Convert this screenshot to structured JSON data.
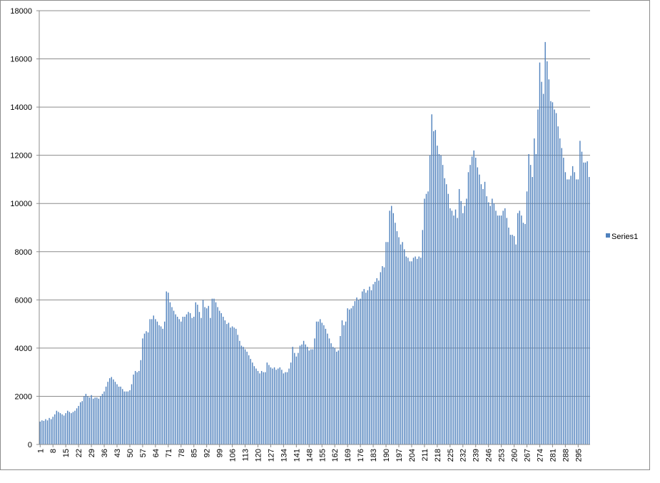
{
  "chart_data": {
    "type": "bar",
    "title": "",
    "xlabel": "",
    "ylabel": "",
    "ylim": [
      0,
      18000
    ],
    "yticks": [
      0,
      2000,
      4000,
      6000,
      8000,
      10000,
      12000,
      14000,
      16000,
      18000
    ],
    "x_tick_labels": [
      "1",
      "8",
      "15",
      "22",
      "29",
      "36",
      "43",
      "50",
      "57",
      "64",
      "71",
      "78",
      "85",
      "92",
      "99",
      "106",
      "113",
      "120",
      "127",
      "134",
      "141",
      "148",
      "155",
      "162",
      "169",
      "176",
      "183",
      "190",
      "197",
      "204",
      "211",
      "218",
      "225",
      "232",
      "239",
      "246",
      "253",
      "260",
      "267",
      "274",
      "281",
      "288",
      "295"
    ],
    "grid": true,
    "legend_position": "right",
    "bar_color": "#4f81bd",
    "series": [
      {
        "name": "Series1",
        "values": [
          950,
          1000,
          980,
          1050,
          1000,
          1100,
          1050,
          1150,
          1250,
          1400,
          1350,
          1300,
          1250,
          1200,
          1300,
          1400,
          1350,
          1300,
          1350,
          1400,
          1500,
          1600,
          1750,
          1800,
          2000,
          2100,
          2000,
          1950,
          2050,
          1900,
          1950,
          1950,
          1900,
          2000,
          2100,
          2200,
          2400,
          2600,
          2750,
          2800,
          2700,
          2600,
          2500,
          2400,
          2400,
          2300,
          2200,
          2200,
          2200,
          2250,
          2500,
          2900,
          3050,
          3000,
          3050,
          3500,
          4400,
          4600,
          4700,
          4650,
          5200,
          5200,
          5350,
          5200,
          5100,
          4950,
          4900,
          4800,
          5100,
          6350,
          6300,
          5900,
          5700,
          5550,
          5400,
          5300,
          5200,
          5100,
          5300,
          5300,
          5400,
          5500,
          5450,
          5250,
          5300,
          5900,
          5800,
          5500,
          5250,
          6000,
          5700,
          5650,
          5750,
          5250,
          6050,
          6050,
          5900,
          5700,
          5550,
          5450,
          5300,
          5150,
          5000,
          5050,
          4850,
          4900,
          4850,
          4800,
          4550,
          4300,
          4100,
          4050,
          3950,
          3850,
          3700,
          3550,
          3400,
          3250,
          3150,
          3050,
          2950,
          3050,
          3000,
          3000,
          3400,
          3300,
          3200,
          3150,
          3200,
          3100,
          3150,
          3200,
          3100,
          2950,
          3000,
          3000,
          3150,
          3400,
          4050,
          3800,
          3650,
          3800,
          4100,
          4150,
          4300,
          4150,
          4050,
          3900,
          3950,
          3950,
          4400,
          5100,
          5100,
          5200,
          5050,
          4950,
          4800,
          4600,
          4400,
          4200,
          4050,
          4000,
          3850,
          3900,
          4500,
          5150,
          4950,
          5100,
          5650,
          5600,
          5650,
          5750,
          5950,
          6100,
          6000,
          6050,
          6350,
          6450,
          6300,
          6400,
          6550,
          6400,
          6650,
          6750,
          6900,
          6800,
          7150,
          7400,
          7350,
          8400,
          8400,
          9700,
          9900,
          9600,
          9200,
          8850,
          8600,
          8300,
          8400,
          8100,
          7800,
          7750,
          7600,
          7600,
          7750,
          7800,
          7700,
          7800,
          7750,
          8900,
          10200,
          10400,
          10500,
          12000,
          13700,
          13000,
          13050,
          12400,
          12050,
          12000,
          11600,
          11050,
          10800,
          10400,
          9800,
          9700,
          9500,
          9750,
          9400,
          10600,
          10100,
          9600,
          9900,
          10200,
          11300,
          11600,
          11950,
          12200,
          11900,
          11500,
          11200,
          10800,
          10600,
          10900,
          10300,
          10050,
          9900,
          10200,
          10000,
          9700,
          9500,
          9500,
          9500,
          9700,
          9800,
          9400,
          9000,
          8700,
          8700,
          8650,
          8300,
          9600,
          9700,
          9500,
          9200,
          9150,
          10500,
          12050,
          11600,
          11100,
          12700,
          12050,
          13900,
          15850,
          15050,
          14550,
          16700,
          15900,
          15150,
          14250,
          14200,
          13900,
          13750,
          13200,
          12700,
          12300,
          11900,
          11300,
          11000,
          11000,
          11150,
          11550,
          11300,
          11000,
          11000,
          12600,
          12150,
          11700,
          11700,
          11750,
          11100
        ]
      }
    ]
  }
}
